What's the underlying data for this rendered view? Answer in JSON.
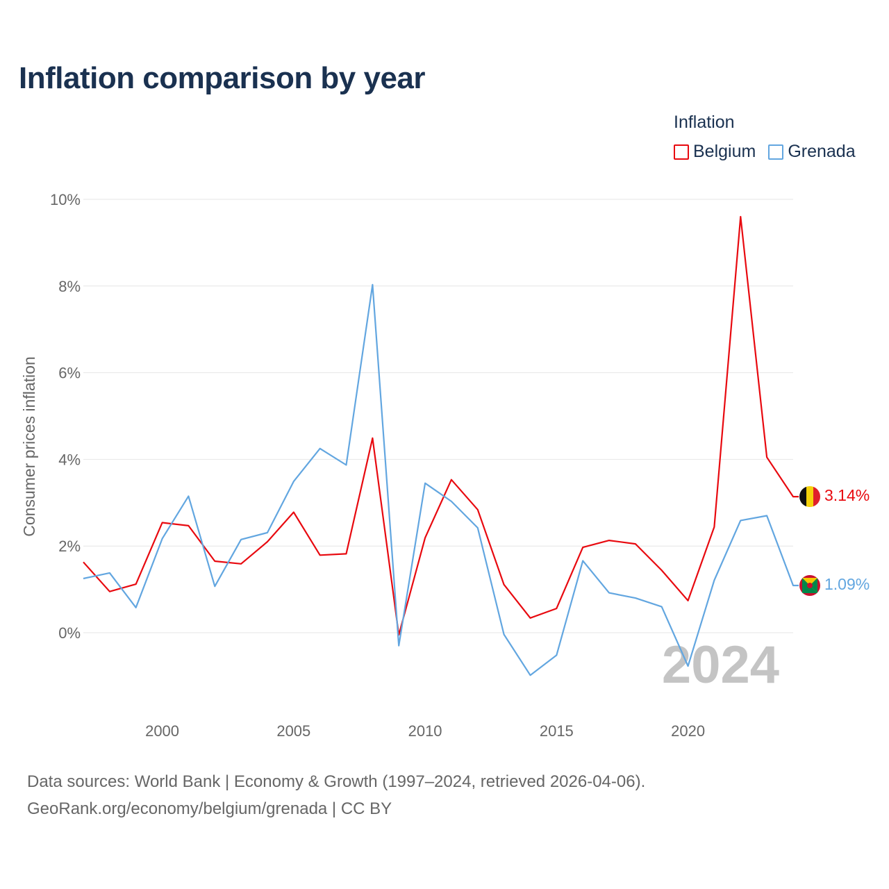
{
  "title": "Inflation comparison by year",
  "legend": {
    "title": "Inflation",
    "items": [
      {
        "label": "Belgium",
        "color": "#e8090f"
      },
      {
        "label": "Grenada",
        "color": "#62a6e0"
      }
    ]
  },
  "footer": {
    "line1": "Data sources: World Bank | Economy & Growth (1997–2024, retrieved 2026-04-06).",
    "line2": "GeoRank.org/economy/belgium/grenada | CC BY"
  },
  "chart_data": {
    "type": "line",
    "title": "Inflation comparison by year",
    "xlabel": "",
    "ylabel": "Consumer prices inflation",
    "xlim": [
      1997,
      2024
    ],
    "ylim": [
      -1.6,
      10
    ],
    "yticks": [
      0,
      2,
      4,
      6,
      8,
      10
    ],
    "ytick_labels": [
      "0%",
      "2%",
      "4%",
      "6%",
      "8%",
      "10%"
    ],
    "xticks": [
      2000,
      2005,
      2010,
      2015,
      2020
    ],
    "xtick_labels": [
      "2000",
      "2005",
      "2010",
      "2015",
      "2020"
    ],
    "grid": true,
    "legend_position": "top-right",
    "annotation": "2024",
    "x": [
      1997,
      1998,
      1999,
      2000,
      2001,
      2002,
      2003,
      2004,
      2005,
      2006,
      2007,
      2008,
      2009,
      2010,
      2011,
      2012,
      2013,
      2014,
      2015,
      2016,
      2017,
      2018,
      2019,
      2020,
      2021,
      2022,
      2023,
      2024
    ],
    "series": [
      {
        "name": "Belgium",
        "color": "#e8090f",
        "end_label": "3.14%",
        "values": [
          1.63,
          0.95,
          1.12,
          2.54,
          2.47,
          1.65,
          1.59,
          2.1,
          2.78,
          1.79,
          1.82,
          4.49,
          -0.05,
          2.19,
          3.53,
          2.84,
          1.11,
          0.34,
          0.56,
          1.97,
          2.13,
          2.05,
          1.44,
          0.74,
          2.44,
          9.6,
          4.05,
          3.14
        ]
      },
      {
        "name": "Grenada",
        "color": "#62a6e0",
        "end_label": "1.09%",
        "values": [
          1.25,
          1.38,
          0.58,
          2.17,
          3.15,
          1.07,
          2.15,
          2.31,
          3.49,
          4.25,
          3.87,
          8.03,
          -0.3,
          3.45,
          3.03,
          2.42,
          -0.04,
          -0.98,
          -0.52,
          1.66,
          0.92,
          0.8,
          0.6,
          -0.77,
          1.21,
          2.59,
          2.7,
          1.09
        ]
      }
    ]
  }
}
